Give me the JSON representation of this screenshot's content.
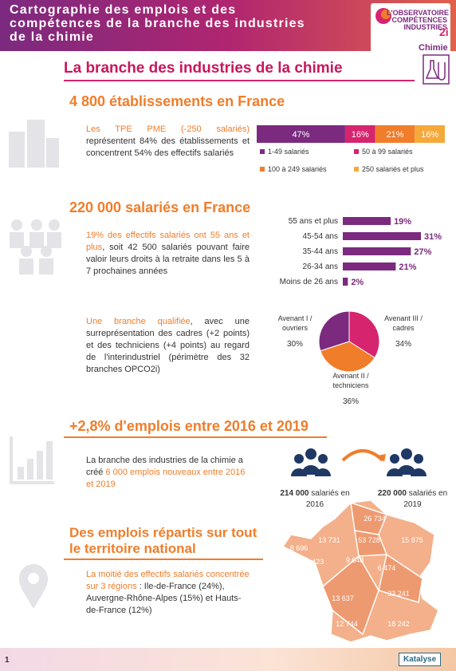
{
  "header": {
    "title": "Cartographie des emplois et des compétences de la branche des industries de la chimie",
    "logo_lines": [
      "L'OBSERVATOIRE",
      "COMPÉTENCES",
      "INDUSTRIES",
      "2i"
    ],
    "logo_tag": "Chimie"
  },
  "main_title": "La branche des industries de la chimie",
  "establishments": {
    "heading": "4 800 établissements en France",
    "text_highlight": "Les TPE PME (-250 salariés)",
    "text_rest": "représentent 84% des établissements et concentrent 54% des effectifs salariés",
    "chart": {
      "type": "stacked-bar",
      "series": [
        {
          "name": "1-49 salariés",
          "color": "#7b2a7f",
          "values": [
            47
          ],
          "value_labels": [
            "47%"
          ]
        },
        {
          "name": "50 à 99 salariés",
          "color": "#d6246e",
          "values": [
            16
          ],
          "value_labels": [
            "16%"
          ]
        },
        {
          "name": "100 à 249 salariés",
          "color": "#f07d2a",
          "values": [
            21
          ],
          "value_labels": [
            "21%"
          ]
        },
        {
          "name": "250 salariés et plus",
          "color": "#f5a93b",
          "values": [
            16
          ],
          "value_labels": [
            "16%"
          ]
        }
      ]
    }
  },
  "employees": {
    "heading": "220 000 salariés en France",
    "text_highlight": "19% des effectifs salariés ont 55 ans et plus",
    "text_rest": ", soit 42 500 salariés pouvant faire valoir leurs droits à la retraite dans les 5 à 7 prochaines années",
    "chart": {
      "type": "hbar",
      "color": "#7b2a7f",
      "categories": [
        "55 ans et plus",
        "45-54 ans",
        "35-44 ans",
        "26-34 ans",
        "Moins de 26 ans"
      ],
      "values": [
        19,
        31,
        27,
        21,
        2
      ],
      "value_labels": [
        "19%",
        "31%",
        "27%",
        "21%",
        "2%"
      ]
    }
  },
  "qualification": {
    "text_highlight": "Une branche qualifiée",
    "text_rest": ", avec une surreprésentation des cadres (+2 points) et des techniciens (+4 points) au regard de l'interindustriel (périmètre des 32 branches OPCO2i)",
    "chart": {
      "type": "pie",
      "categories": [
        "Avenant III / cadres",
        "Avenant II / techniciens",
        "Avenant I / ouvriers"
      ],
      "values": [
        34,
        36,
        30
      ],
      "value_labels": [
        "34%",
        "36%",
        "30%"
      ],
      "colors": [
        "#d6246e",
        "#f07d2a",
        "#7b2a7f"
      ]
    }
  },
  "growth": {
    "heading": "+2,8% d'emplois entre 2016 et 2019",
    "text_start": "La branche des industries de la chimie a créé ",
    "text_highlight": "6 000 emplois nouveaux entre 2016 et 2019",
    "before": {
      "number": "214 000",
      "label": "salariés en 2016"
    },
    "after": {
      "number": "220 000",
      "label": "salariés en 2019"
    }
  },
  "territory": {
    "heading": "Des emplois répartis sur tout le territoire national",
    "text_highlight": "La moitié des effectifs salariés concentrée sur 3 régions",
    "text_rest": " : Ile-de-France (24%), Auvergne-Rhône-Alpes (15%) et Hauts-de-France (12%)",
    "regions": [
      "26 734",
      "13 731",
      "53 728",
      "15 875",
      "8 696",
      "7 423",
      "9 648",
      "6 474",
      "13 637",
      "33 241",
      "12 744",
      "18 242"
    ]
  },
  "footer": {
    "page": "1",
    "brand": "Katalyse"
  }
}
